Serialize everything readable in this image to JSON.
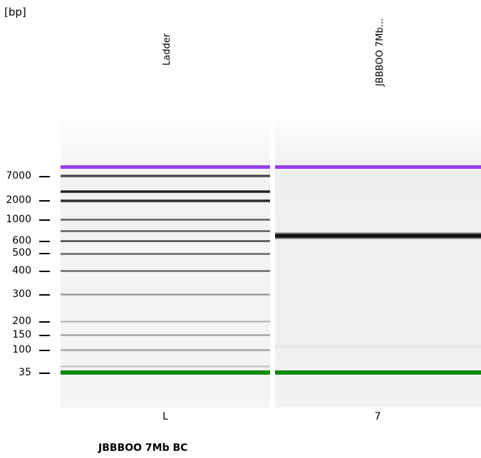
{
  "unit_label": "[bp]",
  "lanes": [
    {
      "id": "ladder",
      "header": "Ladder",
      "footer": "L"
    },
    {
      "id": "sample",
      "header": "JBBBOO 7Mb...",
      "footer": "7"
    }
  ],
  "size_markers": [
    "7000",
    "2000",
    "1000",
    "600",
    "500",
    "400",
    "300",
    "200",
    "150",
    "100",
    "35"
  ],
  "sample_title": "JBBBOO 7Mb BC",
  "colors": {
    "upper_marker": "#9a3ff0",
    "lower_marker": "#0a8a0a"
  }
}
